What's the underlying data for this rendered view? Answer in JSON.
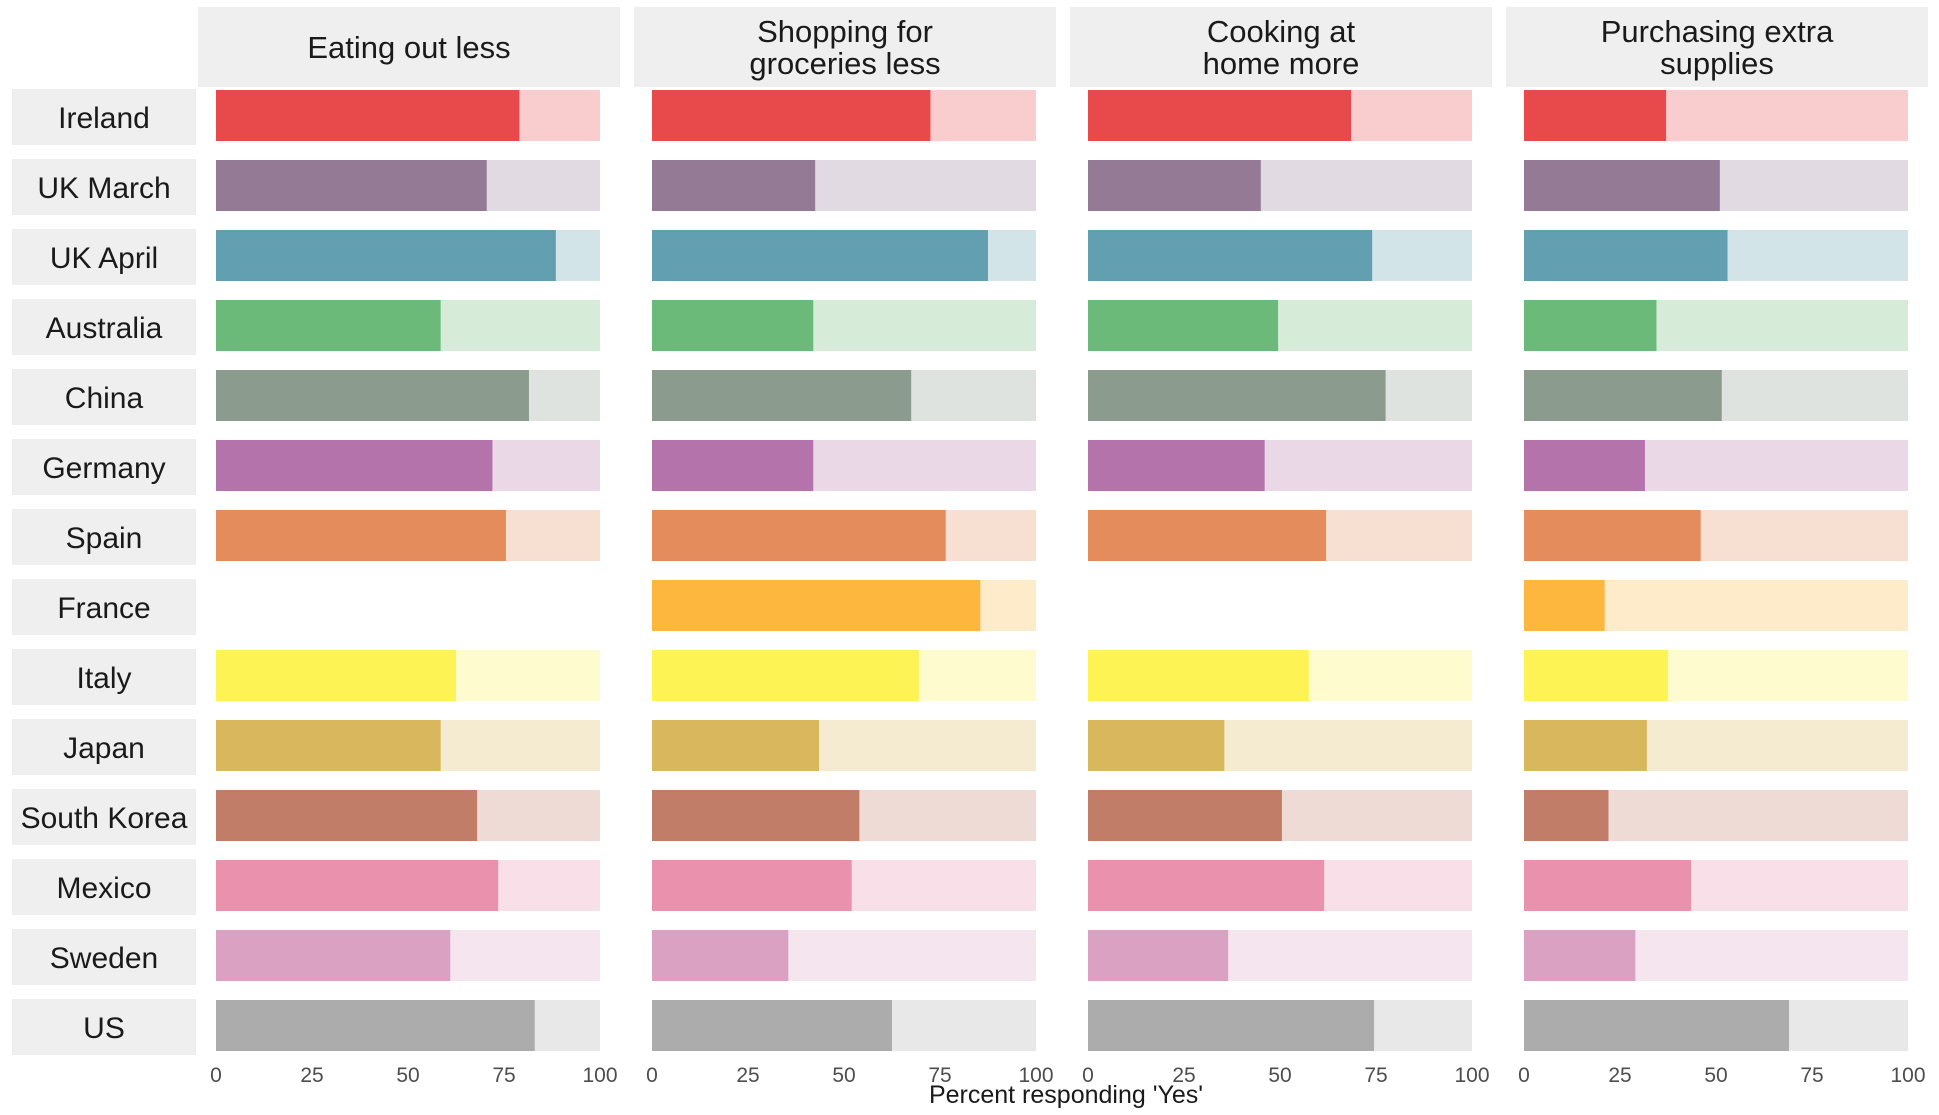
{
  "chart_data": {
    "type": "bar",
    "orientation": "horizontal",
    "layout": "faceted",
    "xlabel": "Percent responding 'Yes'",
    "xlim": [
      0,
      100
    ],
    "xticks": [
      0,
      25,
      50,
      75,
      100
    ],
    "grid": false,
    "legend": "none",
    "background_bar_value": 100,
    "categories": [
      "Ireland",
      "UK March",
      "UK April",
      "Australia",
      "China",
      "Germany",
      "Spain",
      "France",
      "Italy",
      "Japan",
      "South Korea",
      "Mexico",
      "Sweden",
      "US"
    ],
    "colors": {
      "Ireland": "#e8494b",
      "UK March": "#957a96",
      "UK April": "#62a0b1",
      "Australia": "#6cba79",
      "China": "#8b9b8e",
      "Germany": "#b474ab",
      "Spain": "#e48c5b",
      "France": "#fdb73f",
      "Italy": "#fdf355",
      "Japan": "#d9b75c",
      "South Korea": "#c17d68",
      "Mexico": "#ea91ae",
      "Sweden": "#dba1c2",
      "US": "#acacac"
    },
    "panels": [
      {
        "title": [
          "Eating out less"
        ],
        "values": [
          79,
          70.5,
          88.5,
          58.5,
          81.5,
          72,
          75.5,
          null,
          62.5,
          58.5,
          68,
          73.5,
          61,
          83
        ]
      },
      {
        "title": [
          "Shopping for",
          "groceries less"
        ],
        "values": [
          72.5,
          42.5,
          87.5,
          42,
          67.5,
          42,
          76.5,
          85.5,
          69.5,
          43.5,
          54,
          52,
          35.5,
          62.5
        ]
      },
      {
        "title": [
          "Cooking at",
          "home more"
        ],
        "values": [
          68.5,
          45,
          74,
          49.5,
          77.5,
          46,
          62,
          null,
          57.5,
          35.5,
          50.5,
          61.5,
          36.5,
          74.5
        ]
      },
      {
        "title": [
          "Purchasing extra",
          "supplies"
        ],
        "values": [
          37,
          51,
          53,
          34.5,
          51.5,
          31.5,
          46,
          21,
          37.5,
          32,
          22,
          43.5,
          29,
          69
        ]
      }
    ]
  }
}
